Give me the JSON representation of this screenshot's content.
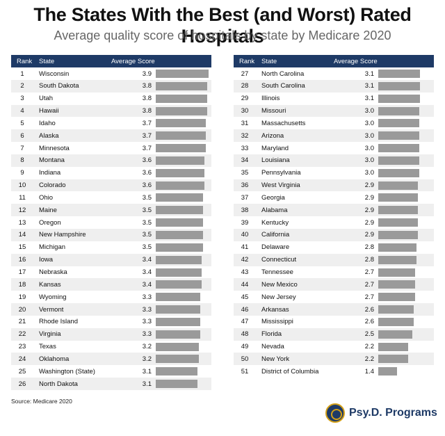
{
  "header": {
    "title": "The States With the Best (and Worst) Rated Hospitals",
    "subtitle": "Average quality score of hospitals by state by Medicare 2020"
  },
  "table_headers": {
    "rank": "Rank",
    "state": "State",
    "score": "Average Score"
  },
  "source": "Source: Medicare 2020",
  "logo": {
    "name": "Psy.D. Programs",
    "icon": "psyd-logo-icon"
  },
  "colors": {
    "header_bg": "#1e3a66",
    "bar": "#9a9a9a",
    "row_alt": "#efefef"
  },
  "chart_data": {
    "type": "bar",
    "title": "The States With the Best (and Worst) Rated Hospitals",
    "subtitle": "Average quality score of hospitals by state by Medicare 2020",
    "xlim": [
      0,
      3.9
    ],
    "rows": [
      {
        "rank": "1",
        "state": "Wisconsin",
        "score": "3.9"
      },
      {
        "rank": "2",
        "state": "South Dakota",
        "score": "3.8"
      },
      {
        "rank": "3",
        "state": "Utah",
        "score": "3.8"
      },
      {
        "rank": "4",
        "state": "Hawaii",
        "score": "3.8"
      },
      {
        "rank": "5",
        "state": "Idaho",
        "score": "3.7"
      },
      {
        "rank": "6",
        "state": "Alaska",
        "score": "3.7"
      },
      {
        "rank": "7",
        "state": "Minnesota",
        "score": "3.7"
      },
      {
        "rank": "8",
        "state": "Montana",
        "score": "3.6"
      },
      {
        "rank": "9",
        "state": "Indiana",
        "score": "3.6"
      },
      {
        "rank": "10",
        "state": "Colorado",
        "score": "3.6"
      },
      {
        "rank": "11",
        "state": "Ohio",
        "score": "3.5"
      },
      {
        "rank": "12",
        "state": "Maine",
        "score": "3.5"
      },
      {
        "rank": "13",
        "state": "Oregon",
        "score": "3.5"
      },
      {
        "rank": "14",
        "state": "New Hampshire",
        "score": "3.5"
      },
      {
        "rank": "15",
        "state": "Michigan",
        "score": "3.5"
      },
      {
        "rank": "16",
        "state": "Iowa",
        "score": "3.4"
      },
      {
        "rank": "17",
        "state": "Nebraska",
        "score": "3.4"
      },
      {
        "rank": "18",
        "state": "Kansas",
        "score": "3.4"
      },
      {
        "rank": "19",
        "state": "Wyoming",
        "score": "3.3"
      },
      {
        "rank": "20",
        "state": "Vermont",
        "score": "3.3"
      },
      {
        "rank": "21",
        "state": "Rhode Island",
        "score": "3.3"
      },
      {
        "rank": "22",
        "state": "Virginia",
        "score": "3.3"
      },
      {
        "rank": "23",
        "state": "Texas",
        "score": "3.2"
      },
      {
        "rank": "24",
        "state": "Oklahoma",
        "score": "3.2"
      },
      {
        "rank": "25",
        "state": "Washington (State)",
        "score": "3.1"
      },
      {
        "rank": "26",
        "state": "North Dakota",
        "score": "3.1"
      },
      {
        "rank": "27",
        "state": "North Carolina",
        "score": "3.1"
      },
      {
        "rank": "28",
        "state": "South Carolina",
        "score": "3.1"
      },
      {
        "rank": "29",
        "state": "Illinois",
        "score": "3.1"
      },
      {
        "rank": "30",
        "state": "Missouri",
        "score": "3.0"
      },
      {
        "rank": "31",
        "state": "Massachusetts",
        "score": "3.0"
      },
      {
        "rank": "32",
        "state": "Arizona",
        "score": "3.0"
      },
      {
        "rank": "33",
        "state": "Maryland",
        "score": "3.0"
      },
      {
        "rank": "34",
        "state": "Louisiana",
        "score": "3.0"
      },
      {
        "rank": "35",
        "state": "Pennsylvania",
        "score": "3.0"
      },
      {
        "rank": "36",
        "state": "West Virginia",
        "score": "2.9"
      },
      {
        "rank": "37",
        "state": "Georgia",
        "score": "2.9"
      },
      {
        "rank": "38",
        "state": "Alabama",
        "score": "2.9"
      },
      {
        "rank": "39",
        "state": "Kentucky",
        "score": "2.9"
      },
      {
        "rank": "40",
        "state": "California",
        "score": "2.9"
      },
      {
        "rank": "41",
        "state": "Delaware",
        "score": "2.8"
      },
      {
        "rank": "42",
        "state": "Connecticut",
        "score": "2.8"
      },
      {
        "rank": "43",
        "state": "Tennessee",
        "score": "2.7"
      },
      {
        "rank": "44",
        "state": "New Mexico",
        "score": "2.7"
      },
      {
        "rank": "45",
        "state": "New Jersey",
        "score": "2.7"
      },
      {
        "rank": "46",
        "state": "Arkansas",
        "score": "2.6"
      },
      {
        "rank": "47",
        "state": "Mississippi",
        "score": "2.6"
      },
      {
        "rank": "48",
        "state": "Florida",
        "score": "2.5"
      },
      {
        "rank": "49",
        "state": "Nevada",
        "score": "2.2"
      },
      {
        "rank": "50",
        "state": "New York",
        "score": "2.2"
      },
      {
        "rank": "51",
        "state": "District of Columbia",
        "score": "1.4"
      }
    ]
  }
}
